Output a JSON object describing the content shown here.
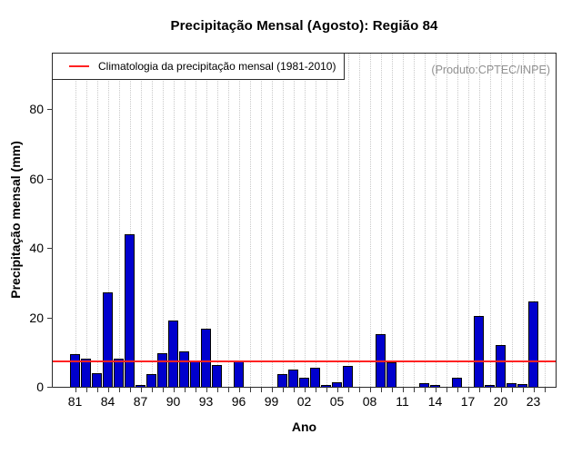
{
  "title": "Precipitação Mensal (Agosto): Região 84",
  "watermark": "(Produto:CPTEC/INPE)",
  "legend": {
    "label": "Climatologia da precipitação mensal (1981-2010)"
  },
  "chart_data": {
    "type": "bar",
    "title": "Precipitação Mensal (Agosto): Região 84",
    "xlabel": "Ano",
    "ylabel": "Precipitação mensal (mm)",
    "ylim": [
      0,
      96
    ],
    "yticks": [
      0,
      20,
      40,
      60,
      80
    ],
    "grid": "vertical-dotted",
    "legend_position": "topleft",
    "bar_color": "#0000CD",
    "climatology_line_color": "#FF2222",
    "climatology_value": 7.4,
    "years": [
      1981,
      1982,
      1983,
      1984,
      1985,
      1986,
      1987,
      1988,
      1989,
      1990,
      1991,
      1992,
      1993,
      1994,
      1995,
      1996,
      1997,
      1998,
      1999,
      2000,
      2001,
      2002,
      2003,
      2004,
      2005,
      2006,
      2007,
      2008,
      2009,
      2010,
      2011,
      2012,
      2013,
      2014,
      2015,
      2016,
      2017,
      2018,
      2019,
      2020,
      2021,
      2022,
      2023,
      2024
    ],
    "values": [
      9.5,
      8.2,
      3.9,
      27.3,
      8.0,
      44.0,
      0.5,
      3.6,
      9.6,
      19.0,
      10.3,
      7.5,
      16.7,
      6.4,
      0,
      7.7,
      0,
      0,
      0,
      3.7,
      5.0,
      2.5,
      5.5,
      0.5,
      1.3,
      6.0,
      0,
      0,
      15.2,
      7.0,
      0,
      0,
      1.0,
      0.4,
      0,
      2.7,
      0,
      20.4,
      0.4,
      12.0,
      1.0,
      0.9,
      24.5,
      0
    ],
    "x_tick_labels": [
      "81",
      "84",
      "87",
      "90",
      "93",
      "96",
      "99",
      "02",
      "05",
      "08",
      "11",
      "14",
      "17",
      "20",
      "23"
    ]
  }
}
